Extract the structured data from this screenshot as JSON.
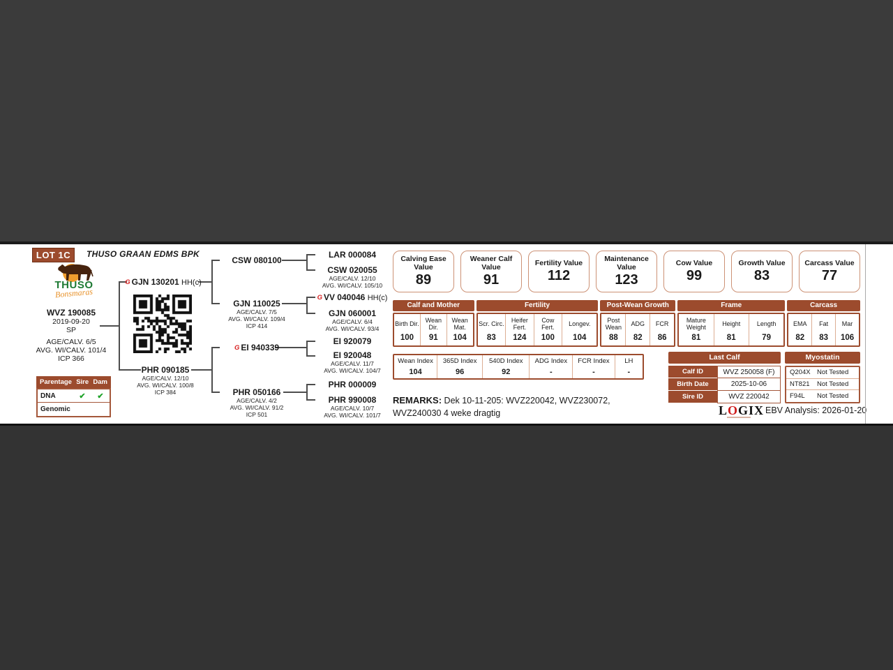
{
  "header": {
    "lot": "LOT 1C",
    "farm": "THUSO GRAAN EDMS BPK"
  },
  "brand": {
    "logo_title": "THUSO",
    "logo_script": "Bonsmaras"
  },
  "icons": {
    "gt_brand": "G"
  },
  "animal": {
    "id": "WVZ 190085",
    "birth_date": "2019-09-20",
    "code": "SP",
    "age_calv": "AGE/CALV. 6/5",
    "avg_wi_calv": "AVG. WI/CALV. 101/4",
    "icp": "ICP 366"
  },
  "parentage": {
    "title": "Parentage",
    "col_sire": "Sire",
    "col_dam": "Dam",
    "rows": [
      {
        "label": "DNA",
        "sire": "✔",
        "dam": "✔"
      },
      {
        "label": "Genomic",
        "sire": "",
        "dam": ""
      }
    ]
  },
  "pedigree": {
    "sire": {
      "id": "GJN 130201",
      "tag": "HH(c)"
    },
    "dam": {
      "id": "PHR 090185",
      "details": [
        "AGE/CALV. 12/10",
        "AVG. WI/CALV. 100/8",
        "ICP 384"
      ]
    },
    "ss": {
      "id": "CSW 080100"
    },
    "sd": {
      "id": "GJN 110025",
      "details": [
        "AGE/CALV. 7/5",
        "AVG. WI/CALV. 109/4",
        "ICP 414"
      ]
    },
    "ds": {
      "id": "EI 940339"
    },
    "dd": {
      "id": "PHR 050166",
      "details": [
        "AGE/CALV. 4/2",
        "AVG. WI/CALV. 91/2",
        "ICP 501"
      ]
    },
    "sss": {
      "id": "LAR 000084"
    },
    "ssd": {
      "id": "CSW 020055",
      "details": [
        "AGE/CALV. 12/10",
        "AVG. WI/CALV. 105/10"
      ]
    },
    "sds": {
      "id": "VV 040046",
      "tag": "HH(c)"
    },
    "sdd": {
      "id": "GJN 060001",
      "details": [
        "AGE/CALV. 6/4",
        "AVG. WI/CALV. 93/4"
      ]
    },
    "dss": {
      "id": "EI 920079"
    },
    "dsd": {
      "id": "EI 920048",
      "details": [
        "AGE/CALV. 11/7",
        "AVG. WI/CALV. 104/7"
      ]
    },
    "dds": {
      "id": "PHR 000009"
    },
    "ddd": {
      "id": "PHR 990008",
      "details": [
        "AGE/CALV. 10/7",
        "AVG. WI/CALV. 101/7"
      ]
    }
  },
  "value_boxes": [
    {
      "label": "Calving Ease Value",
      "value": "89"
    },
    {
      "label": "Weaner Calf Value",
      "value": "91"
    },
    {
      "label": "Fertility Value",
      "value": "112"
    },
    {
      "label": "Maintenance Value",
      "value": "123"
    },
    {
      "label": "Cow Value",
      "value": "99"
    },
    {
      "label": "Growth Value",
      "value": "83"
    },
    {
      "label": "Carcass Value",
      "value": "77"
    }
  ],
  "stats": {
    "groups": [
      {
        "label": "Calf and Mother",
        "cols": [
          {
            "h": "Birth Dir.",
            "v": "100"
          },
          {
            "h": "Wean Dir.",
            "v": "91"
          },
          {
            "h": "Wean Mat.",
            "v": "104"
          }
        ]
      },
      {
        "label": "Fertility",
        "cols": [
          {
            "h": "Scr. Circ.",
            "v": "83"
          },
          {
            "h": "Heifer Fert.",
            "v": "124"
          },
          {
            "h": "Cow Fert.",
            "v": "100"
          },
          {
            "h": "Longev.",
            "v": "104"
          }
        ]
      },
      {
        "label": "Post-Wean Growth",
        "cols": [
          {
            "h": "Post Wean",
            "v": "88"
          },
          {
            "h": "ADG",
            "v": "82"
          },
          {
            "h": "FCR",
            "v": "86"
          }
        ]
      },
      {
        "label": "Frame",
        "cols": [
          {
            "h": "Mature Weight",
            "v": "81"
          },
          {
            "h": "Height",
            "v": "81"
          },
          {
            "h": "Length",
            "v": "79"
          }
        ]
      },
      {
        "label": "Carcass",
        "cols": [
          {
            "h": "EMA",
            "v": "82"
          },
          {
            "h": "Fat",
            "v": "83"
          },
          {
            "h": "Mar",
            "v": "106"
          }
        ]
      }
    ]
  },
  "indexes": [
    {
      "h": "Wean Index",
      "v": "104"
    },
    {
      "h": "365D Index",
      "v": "96"
    },
    {
      "h": "540D Index",
      "v": "92"
    },
    {
      "h": "ADG Index",
      "v": "-"
    },
    {
      "h": "FCR Index",
      "v": "-"
    },
    {
      "h": "LH",
      "v": "-"
    }
  ],
  "last_calf": {
    "title": "Last Calf",
    "rows": [
      {
        "label": "Calf ID",
        "value": "WVZ 250058 (F)"
      },
      {
        "label": "Birth Date",
        "value": "2025-10-06"
      },
      {
        "label": "Sire ID",
        "value": "WVZ 220042"
      }
    ]
  },
  "myostatin": {
    "title": "Myostatin",
    "rows": [
      {
        "gene": "Q204X",
        "result": "Not Tested"
      },
      {
        "gene": "NT821",
        "result": "Not Tested"
      },
      {
        "gene": "F94L",
        "result": "Not Tested"
      }
    ]
  },
  "remarks": {
    "label": "REMARKS:",
    "line1": "Dek 10-11-205:  WVZ220042, WVZ230072,",
    "line2": "WVZ240030 4 weke dragtig"
  },
  "footer": {
    "logix_pre": "L",
    "logix_o": "O",
    "logix_post": "GIX",
    "analysis": "EBV Analysis: 2026-01-20"
  }
}
